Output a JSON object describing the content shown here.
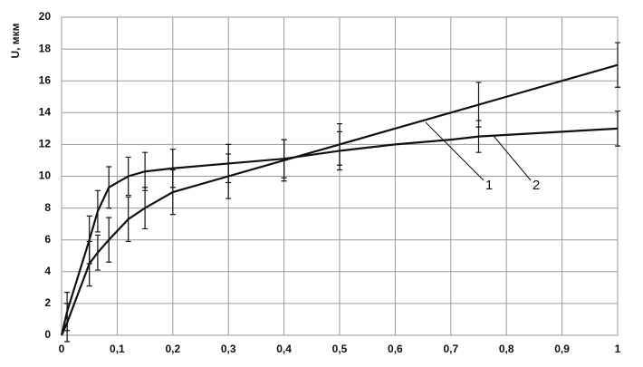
{
  "chart_data": {
    "type": "line",
    "y_label": "U, мкм",
    "x": [
      0,
      0.01,
      0.05,
      0.065,
      0.085,
      0.12,
      0.15,
      0.2,
      0.3,
      0.4,
      0.5,
      0.6,
      0.7,
      0.75,
      0.8,
      0.9,
      1
    ],
    "series": [
      {
        "name": "1",
        "color": "#111111",
        "values": [
          0,
          0.8,
          4.5,
          5.2,
          6,
          7.3,
          8,
          9,
          10,
          11,
          12,
          13,
          14,
          14.5,
          15,
          16,
          17
        ],
        "errors": [
          null,
          1.2,
          1.4,
          1.1,
          1.4,
          1.4,
          1.3,
          1.4,
          1.4,
          1.3,
          1.3,
          null,
          null,
          1.4,
          null,
          null,
          1.4
        ]
      },
      {
        "name": "2",
        "color": "#111111",
        "values": [
          0,
          1.5,
          6,
          7.8,
          9.3,
          10,
          10.3,
          10.5,
          10.8,
          11.1,
          11.6,
          12,
          12.3,
          12.5,
          12.6,
          12.8,
          13
        ],
        "errors": [
          null,
          1.2,
          1.5,
          1.3,
          1.3,
          1.2,
          1.2,
          1.2,
          1.2,
          1.2,
          1.2,
          null,
          null,
          1,
          null,
          null,
          1.1
        ]
      }
    ],
    "xlim": [
      0,
      1
    ],
    "xticks": [
      0,
      {
        "value": 0.1,
        "label": "0,1"
      },
      {
        "value": 0.2,
        "label": "0,2"
      },
      {
        "value": 0.3,
        "label": "0,3"
      },
      {
        "value": 0.4,
        "label": "0,4"
      },
      {
        "value": 0.5,
        "label": "0,5"
      },
      {
        "value": 0.6,
        "label": "0,6"
      },
      {
        "value": 0.7,
        "label": "0,7"
      },
      {
        "value": 0.8,
        "label": "0,8"
      },
      {
        "value": 0.9,
        "label": "0,9"
      },
      1
    ],
    "ylim": [
      0,
      20
    ],
    "yticks": [
      0,
      2,
      4,
      6,
      8,
      10,
      12,
      14,
      16,
      18,
      20
    ],
    "grid": true
  }
}
